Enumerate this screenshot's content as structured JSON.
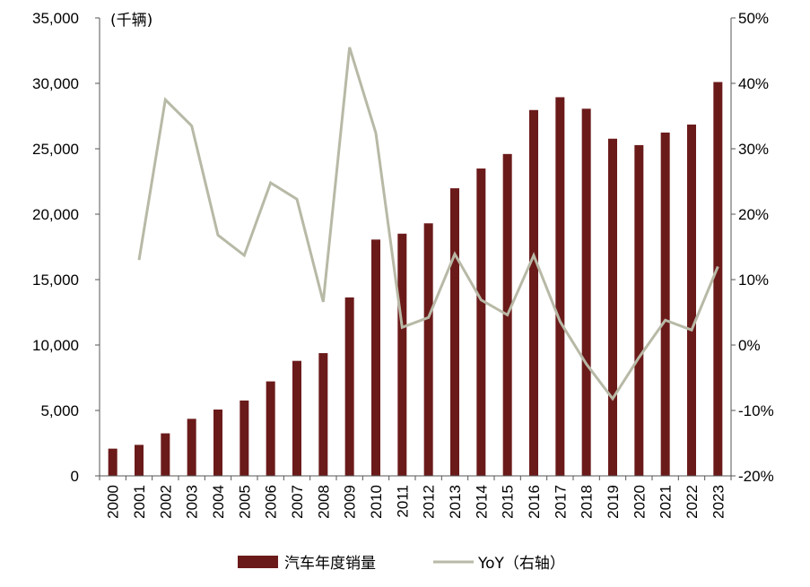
{
  "chart_data": {
    "type": "bar+line",
    "unit_label": "(千辆)",
    "categories": [
      "2000",
      "2001",
      "2002",
      "2003",
      "2004",
      "2005",
      "2006",
      "2007",
      "2008",
      "2009",
      "2010",
      "2011",
      "2012",
      "2013",
      "2014",
      "2015",
      "2016",
      "2017",
      "2018",
      "2019",
      "2020",
      "2021",
      "2022",
      "2023"
    ],
    "series": [
      {
        "name": "汽车年度销量",
        "kind": "bar",
        "axis": "left",
        "color": "#6B1A1A",
        "values": [
          2080,
          2370,
          3250,
          4360,
          5070,
          5760,
          7220,
          8790,
          9380,
          13640,
          18060,
          18510,
          19300,
          21980,
          23490,
          24600,
          27960,
          28940,
          28060,
          25770,
          25280,
          26240,
          26850,
          30100
        ]
      },
      {
        "name": "YoY（右轴）",
        "kind": "line",
        "axis": "right",
        "color": "#B8B9A6",
        "values": [
          null,
          13.0,
          37.5,
          33.5,
          16.8,
          13.7,
          24.8,
          22.3,
          6.6,
          45.5,
          32.4,
          2.7,
          4.2,
          13.9,
          6.9,
          4.6,
          13.7,
          3.6,
          -2.9,
          -8.2,
          -1.9,
          3.8,
          2.3,
          12.0
        ]
      }
    ],
    "left_axis": {
      "min": 0,
      "max": 35000,
      "step": 5000,
      "tick_labels": [
        "0",
        "5,000",
        "10,000",
        "15,000",
        "20,000",
        "25,000",
        "30,000",
        "35,000"
      ]
    },
    "right_axis": {
      "min": -20,
      "max": 50,
      "step": 10,
      "tick_labels": [
        "-20%",
        "-10%",
        "0%",
        "10%",
        "20%",
        "30%",
        "40%",
        "50%"
      ]
    },
    "legend": {
      "position": "bottom-center",
      "items": [
        "汽车年度销量",
        "YoY（右轴）"
      ]
    }
  }
}
